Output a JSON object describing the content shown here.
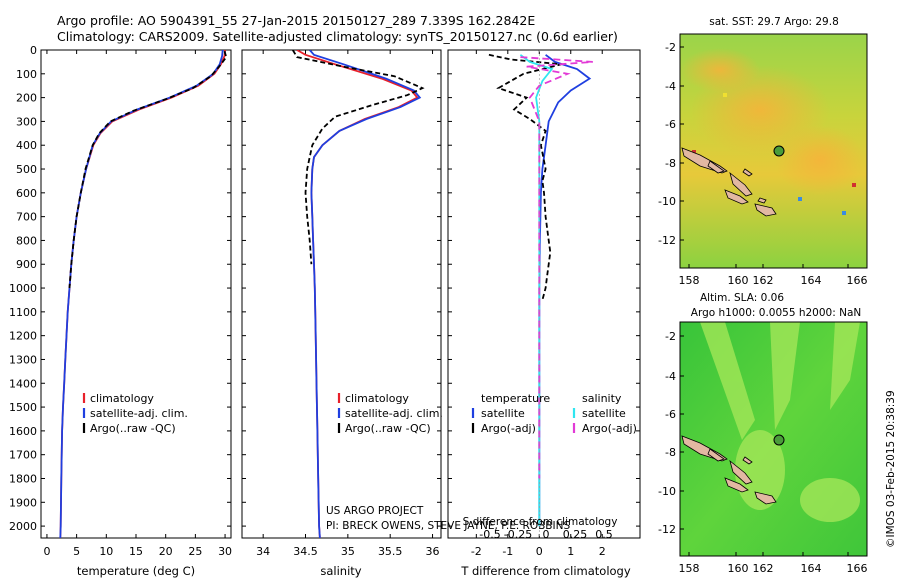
{
  "header": {
    "line1": "Argo profile: AO 5904391_55 27-Jan-2015 20150127_289 7.339S 162.2842E",
    "line2": "Climatology: CARS2009. Satellite-adjusted climatology: synTS_20150127.nc (0.6d earlier)"
  },
  "colors": {
    "climatology": "#e8202a",
    "satellite": "#1f3fe0",
    "argo": "#000000",
    "sal_satellite": "#2fe6f0",
    "sal_argo": "#e23ad6",
    "land": "#e2b8a2",
    "marker": "#4a9c3a"
  },
  "chart_data": [
    {
      "type": "line",
      "panel": "temperature",
      "xlabel": "temperature (deg C)",
      "ylabel": "",
      "xlim": [
        -1,
        31
      ],
      "ylim": [
        2050,
        0
      ],
      "xticks": [
        0,
        5,
        10,
        15,
        20,
        25,
        30
      ],
      "yticks": [
        0,
        100,
        200,
        300,
        400,
        500,
        600,
        700,
        800,
        900,
        1000,
        1100,
        1200,
        1300,
        1400,
        1500,
        1600,
        1700,
        1800,
        1900,
        2000
      ],
      "series": [
        {
          "name": "climatology",
          "key": "climatology",
          "dash": "",
          "x": [
            30.0,
            29.9,
            29.3,
            28.2,
            25.5,
            21.0,
            15.5,
            11.0,
            9.0,
            7.8,
            6.6,
            5.7,
            5.0,
            4.5,
            4.1,
            3.8,
            3.5,
            3.3,
            3.1,
            2.9,
            2.7,
            2.55,
            2.42,
            2.32,
            2.25
          ],
          "y": [
            0,
            25,
            60,
            100,
            150,
            200,
            250,
            300,
            350,
            400,
            500,
            600,
            700,
            800,
            900,
            1000,
            1100,
            1200,
            1300,
            1400,
            1500,
            1600,
            1800,
            2000,
            2050
          ]
        },
        {
          "name": "satellite-adj. clim.",
          "key": "satellite",
          "dash": "",
          "x": [
            29.6,
            29.5,
            29.1,
            28.0,
            25.2,
            20.7,
            15.2,
            10.8,
            8.9,
            7.7,
            6.6,
            5.7,
            5.0,
            4.5,
            4.1,
            3.8,
            3.5,
            3.3,
            3.1,
            2.9,
            2.7,
            2.55,
            2.42,
            2.32,
            2.25
          ],
          "y": [
            0,
            25,
            60,
            100,
            150,
            200,
            250,
            300,
            350,
            400,
            500,
            600,
            700,
            800,
            900,
            1000,
            1100,
            1200,
            1300,
            1400,
            1500,
            1600,
            1800,
            2000,
            2050
          ]
        },
        {
          "name": "Argo(..raw -QC)",
          "key": "argo",
          "dash": "5,3",
          "x": [
            29.9,
            30.2,
            29.0,
            27.6,
            24.6,
            20.2,
            14.6,
            10.7,
            8.8,
            7.7,
            6.5,
            5.7,
            5.0,
            4.5,
            4.1,
            3.8
          ],
          "y": [
            5,
            30,
            70,
            110,
            160,
            205,
            255,
            300,
            350,
            400,
            500,
            600,
            700,
            800,
            900,
            1000
          ]
        }
      ],
      "legend": [
        "climatology",
        "satellite-adj. clim.",
        "Argo(..raw -QC)"
      ]
    },
    {
      "type": "line",
      "panel": "salinity",
      "xlabel": "salinity",
      "xlim": [
        33.75,
        36.1
      ],
      "ylim": [
        2050,
        0
      ],
      "xticks": [
        34,
        34.5,
        35,
        35.5,
        36
      ],
      "series": [
        {
          "name": "climatology",
          "key": "climatology",
          "dash": "",
          "x": [
            34.4,
            34.5,
            34.85,
            35.4,
            35.75,
            35.82,
            35.6,
            35.2,
            34.9,
            34.7,
            34.6,
            34.58,
            34.57,
            34.58,
            34.59,
            34.6,
            34.61,
            34.62,
            34.63,
            34.64,
            34.65,
            34.66,
            34.67
          ],
          "y": [
            0,
            20,
            60,
            120,
            170,
            200,
            240,
            290,
            340,
            400,
            450,
            500,
            600,
            700,
            800,
            900,
            1000,
            1200,
            1400,
            1600,
            1800,
            2000,
            2050
          ]
        },
        {
          "name": "satellite-adj. clim.",
          "key": "satellite",
          "dash": "",
          "x": [
            34.55,
            34.6,
            34.95,
            35.45,
            35.78,
            35.85,
            35.62,
            35.22,
            34.9,
            34.7,
            34.6,
            34.58,
            34.57,
            34.58,
            34.59,
            34.6,
            34.61,
            34.62,
            34.63,
            34.64,
            34.65,
            34.66,
            34.67
          ],
          "y": [
            0,
            20,
            60,
            120,
            170,
            200,
            240,
            290,
            340,
            400,
            450,
            500,
            600,
            700,
            800,
            900,
            1000,
            1200,
            1400,
            1600,
            1800,
            2000,
            2050
          ]
        },
        {
          "name": "Argo(..raw -QC)",
          "key": "argo",
          "dash": "5,3",
          "x": [
            34.35,
            34.4,
            34.95,
            35.55,
            35.88,
            35.7,
            35.3,
            34.85,
            34.7,
            34.58,
            34.55,
            34.52,
            34.5,
            34.52,
            34.55,
            34.57
          ],
          "y": [
            0,
            30,
            70,
            110,
            160,
            190,
            230,
            280,
            330,
            400,
            450,
            500,
            600,
            700,
            800,
            900
          ]
        }
      ],
      "legend": [
        "climatology",
        "satellite-adj. clim.",
        "Argo(..raw -QC)"
      ],
      "annotations": [
        "US ARGO PROJECT",
        "PI: BRECK OWENS, STEVE JAYNE, P.E. ROBBINS"
      ]
    },
    {
      "type": "line",
      "panel": "differences",
      "xlabel": "T difference from climatology",
      "top_xlabel": "S difference from climatology",
      "xlim": [
        -2.9,
        3.2
      ],
      "ylim": [
        2050,
        0
      ],
      "xticks": [
        -2,
        -1,
        0,
        1,
        2
      ],
      "top_xticks": [
        "-0.5",
        "-0.25",
        "0",
        "0.25",
        "0.5"
      ],
      "series": [
        {
          "name": "satellite",
          "group": "temperature",
          "key": "satellite",
          "dash": "",
          "x": [
            0.2,
            0.5,
            1.2,
            1.6,
            1.0,
            0.6,
            0.3,
            0.2,
            0.1,
            0.05,
            0.02,
            0.0,
            0.0,
            0.0,
            0.0
          ],
          "y": [
            20,
            50,
            80,
            120,
            170,
            220,
            300,
            400,
            500,
            600,
            800,
            1000,
            1400,
            1800,
            2000
          ]
        },
        {
          "name": "Argo(-adj)",
          "group": "temperature",
          "key": "argo",
          "dash": "5,3",
          "x": [
            -1.6,
            -0.9,
            0.7,
            -0.5,
            -1.3,
            -0.4,
            -0.8,
            -0.3,
            0.2,
            0.05,
            0.2,
            0.1,
            0.15,
            0.2,
            0.3,
            0.35,
            0.3,
            0.25,
            0.2,
            0.1
          ],
          "y": [
            20,
            40,
            60,
            100,
            160,
            200,
            250,
            290,
            340,
            400,
            500,
            550,
            600,
            700,
            800,
            850,
            900,
            950,
            1000,
            1050
          ]
        },
        {
          "name": "satellite",
          "group": "salinity",
          "key": "sal_satellite",
          "dash": "",
          "x": [
            -0.6,
            -0.3,
            0.4,
            0.1,
            -0.1,
            0.0,
            0.0,
            0.0,
            0.0,
            0.0,
            0.0,
            0.0
          ],
          "y": [
            20,
            50,
            80,
            130,
            200,
            300,
            400,
            600,
            800,
            1200,
            1600,
            2000
          ]
        },
        {
          "name": "Argo(-adj)",
          "group": "salinity",
          "key": "sal_argo",
          "dash": "7,4",
          "x": [
            -0.6,
            1.7,
            -0.4,
            0.9,
            0.0,
            -0.3,
            0.0,
            0.0,
            0.0,
            0.0,
            0.0
          ],
          "y": [
            30,
            50,
            70,
            100,
            150,
            200,
            300,
            500,
            800,
            1400,
            1800
          ]
        }
      ],
      "legend_headers": [
        "temperature",
        "salinity"
      ]
    }
  ],
  "maps": {
    "top": {
      "title": "sat. SST: 29.7 Argo: 29.8",
      "xticks": [
        "158",
        "160",
        "162",
        "164",
        "166"
      ],
      "yticks": [
        "-2",
        "-4",
        "-6",
        "-8",
        "-10",
        "-12"
      ]
    },
    "bottom": {
      "title_line1": "Altim. SLA: 0.06",
      "title_line2": "Argo h1000: 0.0055 h2000: NaN",
      "xticks": [
        "158",
        "160",
        "162",
        "164",
        "166"
      ],
      "yticks": [
        "-2",
        "-4",
        "-6",
        "-8",
        "-10",
        "-12"
      ]
    }
  },
  "footer": {
    "stamp": "©IMOS 03-Feb-2015 20:38:39"
  }
}
